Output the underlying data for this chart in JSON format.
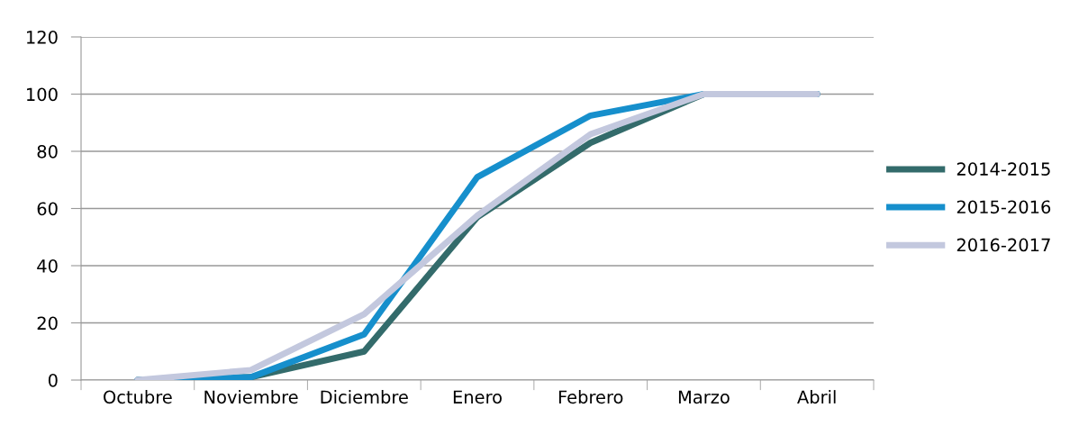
{
  "chart_data": {
    "type": "line",
    "categories": [
      "Octubre",
      "Noviembre",
      "Diciembre",
      "Enero",
      "Febrero",
      "Marzo",
      "Abril"
    ],
    "series": [
      {
        "name": "2014-2015",
        "color": "#336b6b",
        "values": [
          0,
          1,
          10,
          57,
          83,
          100,
          100
        ]
      },
      {
        "name": "2015-2016",
        "color": "#168fcc",
        "values": [
          0,
          1,
          16,
          71,
          92.5,
          100,
          100
        ]
      },
      {
        "name": "2016-2017",
        "color": "#c3c8de",
        "values": [
          0,
          3.5,
          23,
          57.5,
          86,
          100,
          100
        ]
      }
    ],
    "ylim": [
      0,
      120
    ],
    "yticks": [
      0,
      20,
      40,
      60,
      80,
      100,
      120
    ],
    "grid": "y",
    "legend": "right",
    "marker": "none",
    "line_style": "solid"
  }
}
